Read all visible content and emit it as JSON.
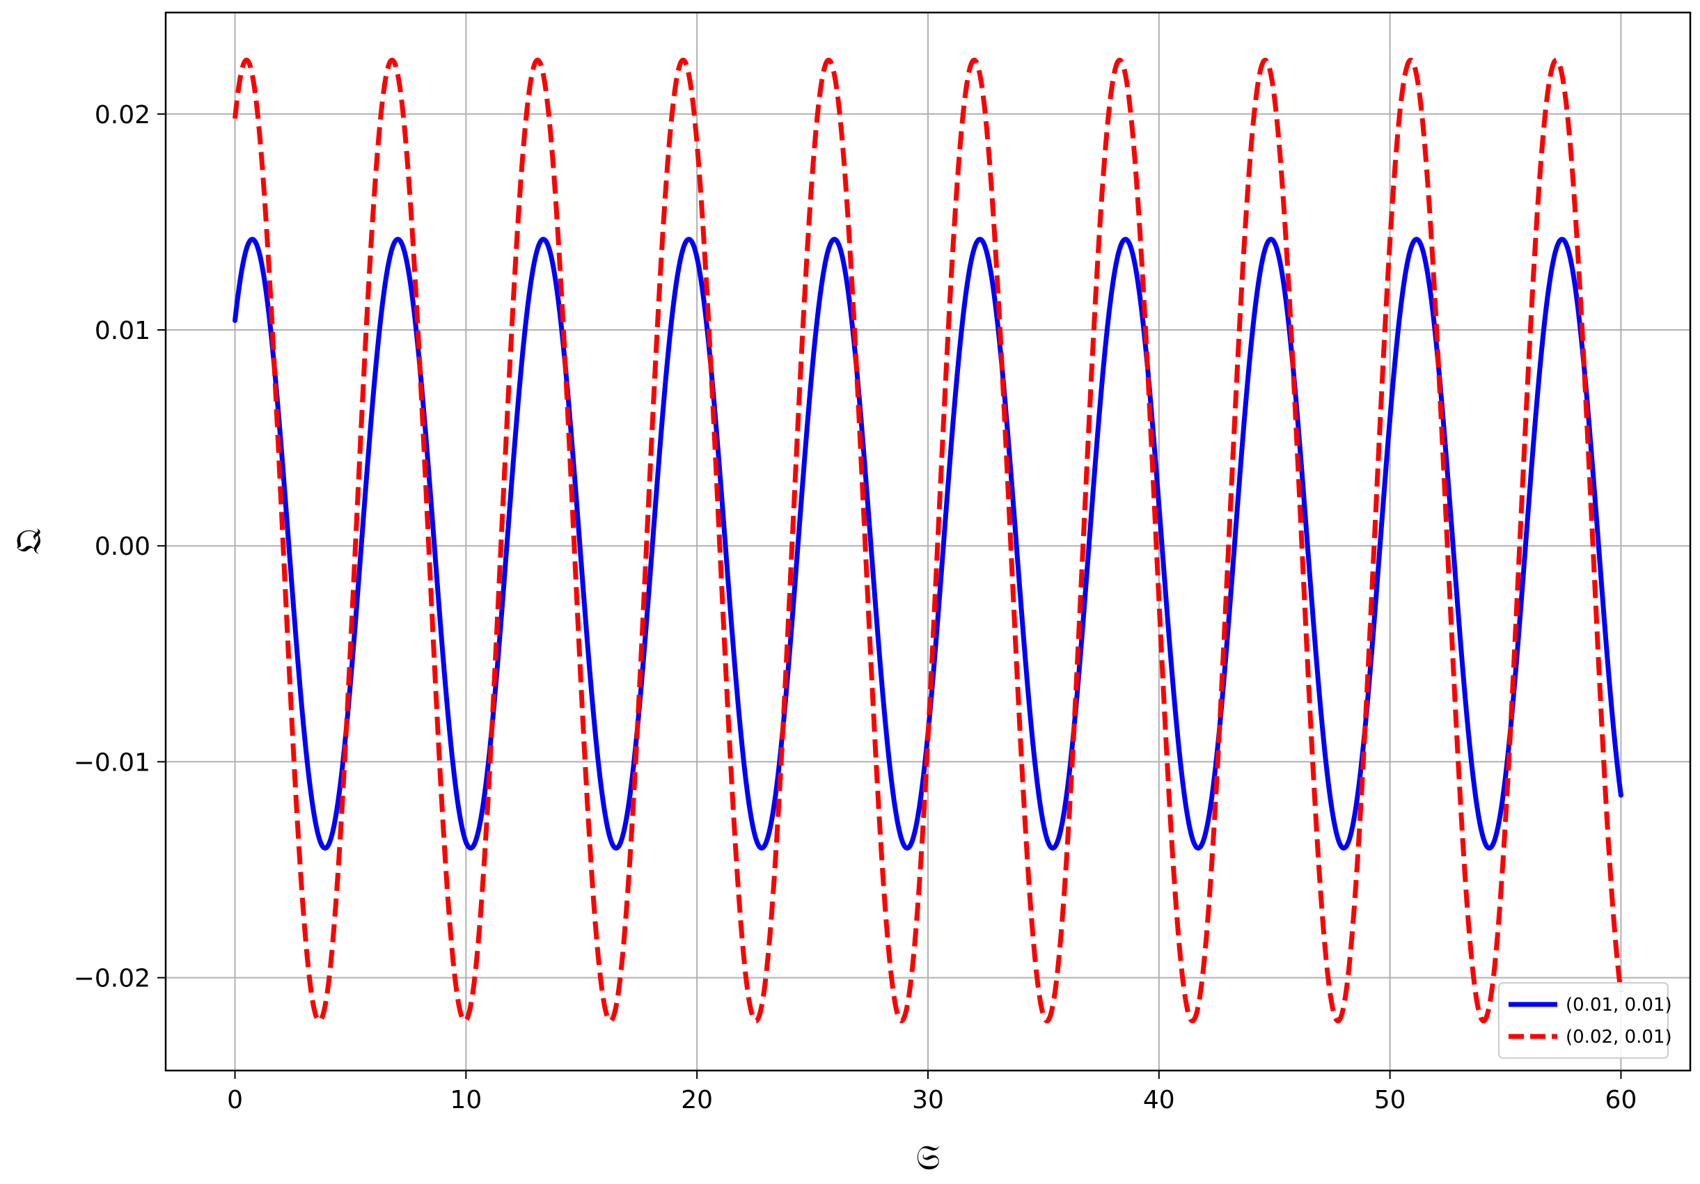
{
  "chart_data": {
    "type": "line",
    "xlabel": "𝔖",
    "ylabel": "𝔔",
    "xlim": [
      -3,
      63
    ],
    "ylim": [
      -0.0243,
      0.0247
    ],
    "x_ticks": [
      0,
      10,
      20,
      30,
      40,
      50,
      60
    ],
    "x_tick_labels": [
      "0",
      "10",
      "20",
      "30",
      "40",
      "50",
      "60"
    ],
    "y_ticks": [
      -0.02,
      -0.01,
      0.0,
      0.01,
      0.02
    ],
    "y_tick_labels": [
      "−0.02",
      "−0.01",
      "0.00",
      "0.01",
      "0.02"
    ],
    "grid": true,
    "legend_position": "lower-right",
    "x_range": [
      0,
      60
    ],
    "period": 6.3,
    "series": [
      {
        "name": "(0.01, 0.01)",
        "color": "#0000ff",
        "style": "solid",
        "peak_x": [
          0.75,
          7.05,
          13.35,
          19.65,
          25.95,
          32.25,
          38.55,
          44.85,
          51.15,
          57.45
        ],
        "peak_y": 0.0142,
        "trough_x": [
          3.9,
          10.2,
          16.5,
          22.8,
          29.1,
          35.4,
          41.7,
          48.0,
          54.3
        ],
        "trough_y": -0.014,
        "start": [
          0,
          0.01
        ],
        "end": [
          60,
          -0.0126
        ]
      },
      {
        "name": "(0.02, 0.01)",
        "color": "#ff0000",
        "style": "dashed",
        "peak_x": [
          0.5,
          6.8,
          13.1,
          19.4,
          25.7,
          32.0,
          38.3,
          44.6,
          50.9,
          57.2
        ],
        "peak_y": 0.0225,
        "trough_x": [
          3.65,
          9.95,
          16.25,
          22.55,
          28.85,
          35.15,
          41.45,
          47.75,
          54.05
        ],
        "trough_y": -0.022,
        "start": [
          0,
          0.02
        ],
        "end": [
          60,
          -0.0205
        ]
      }
    ]
  }
}
